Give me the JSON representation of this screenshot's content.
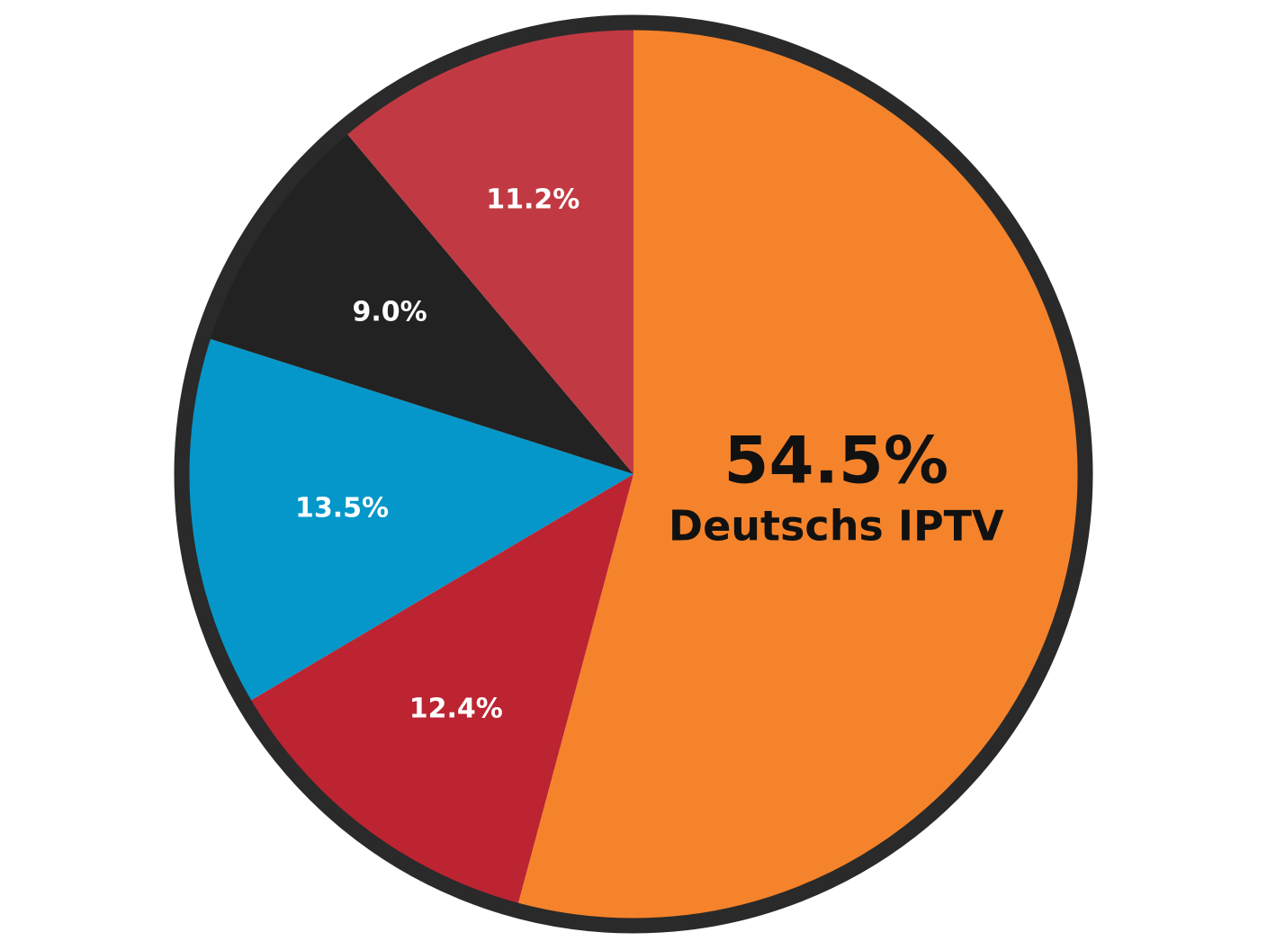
{
  "chart_data": {
    "type": "pie",
    "start": "top",
    "direction": "clockwise",
    "slices": [
      {
        "label": "54.5%",
        "name": "Deutschs IPTV",
        "value": 54.5,
        "color": "#F5832B",
        "label_color": "#111111",
        "featured": true
      },
      {
        "label": "12.4%",
        "value": 12.4,
        "color": "#BC2432",
        "label_color": "#ffffff"
      },
      {
        "label": "13.5%",
        "value": 13.5,
        "color": "#0597C9",
        "label_color": "#ffffff"
      },
      {
        "label": "9.0%",
        "value": 9.0,
        "color": "#222222",
        "label_color": "#ffffff"
      },
      {
        "label": "11.2%",
        "value": 11.2,
        "color": "#C13A43",
        "label_color": "#ffffff"
      }
    ],
    "border_color": "#2a2a2a",
    "legend": "none"
  }
}
